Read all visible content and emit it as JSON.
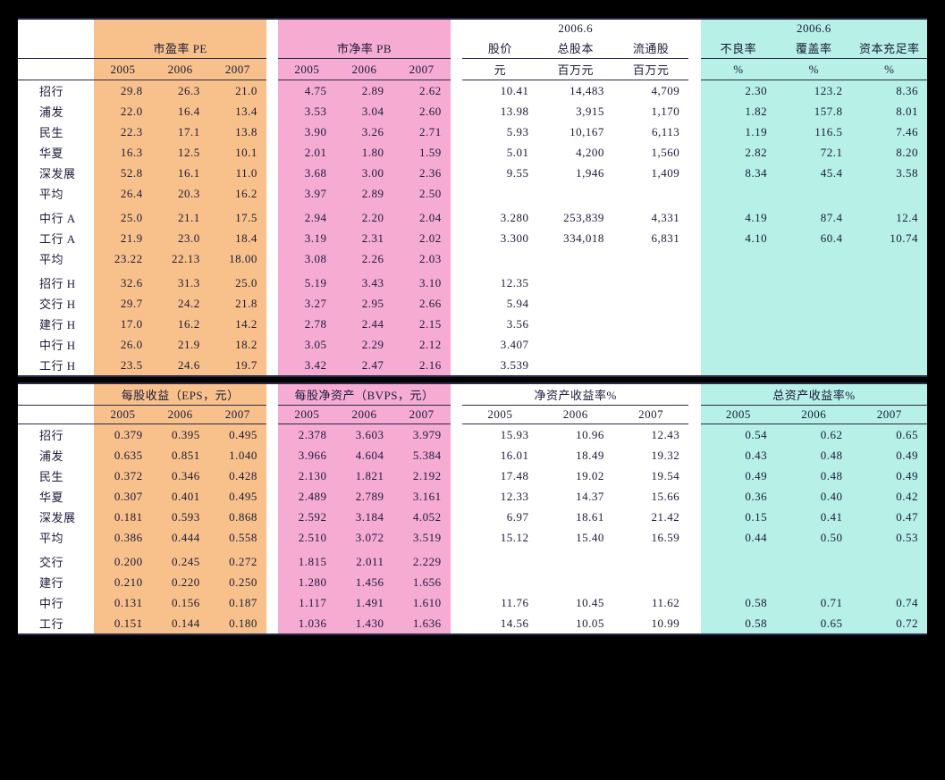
{
  "colors": {
    "pe_bg": "#f8c18b",
    "pb_bg": "#f6abd3",
    "ratio_bg": "#b6f0e6",
    "page_bg": "#000000",
    "panel_bg": "#ffffff",
    "rule": "#2a2a4a",
    "text": "#1a1a3a"
  },
  "typography": {
    "font_family": "SimSun / Songti",
    "font_size_pt": 10
  },
  "table1": {
    "sections": {
      "pe": {
        "title": "市盈率 PE",
        "years": [
          "2005",
          "2006",
          "2007"
        ]
      },
      "pb": {
        "title": "市净率 PB",
        "years": [
          "2005",
          "2006",
          "2007"
        ]
      },
      "mkt": {
        "super": "2006.6",
        "cols": [
          "股价",
          "总股本",
          "流通股"
        ],
        "units": [
          "元",
          "百万元",
          "百万元"
        ]
      },
      "ratio": {
        "super": "2006.6",
        "cols": [
          "不良率",
          "覆盖率",
          "资本充足率"
        ],
        "units": [
          "%",
          "%",
          "%"
        ]
      }
    },
    "rows": [
      {
        "label": "招行",
        "pe": [
          "29.8",
          "26.3",
          "21.0"
        ],
        "pb": [
          "4.75",
          "2.89",
          "2.62"
        ],
        "mkt": [
          "10.41",
          "14,483",
          "4,709"
        ],
        "ratio": [
          "2.30",
          "123.2",
          "8.36"
        ]
      },
      {
        "label": "浦发",
        "pe": [
          "22.0",
          "16.4",
          "13.4"
        ],
        "pb": [
          "3.53",
          "3.04",
          "2.60"
        ],
        "mkt": [
          "13.98",
          "3,915",
          "1,170"
        ],
        "ratio": [
          "1.82",
          "157.8",
          "8.01"
        ]
      },
      {
        "label": "民生",
        "pe": [
          "22.3",
          "17.1",
          "13.8"
        ],
        "pb": [
          "3.90",
          "3.26",
          "2.71"
        ],
        "mkt": [
          "5.93",
          "10,167",
          "6,113"
        ],
        "ratio": [
          "1.19",
          "116.5",
          "7.46"
        ]
      },
      {
        "label": "华夏",
        "pe": [
          "16.3",
          "12.5",
          "10.1"
        ],
        "pb": [
          "2.01",
          "1.80",
          "1.59"
        ],
        "mkt": [
          "5.01",
          "4,200",
          "1,560"
        ],
        "ratio": [
          "2.82",
          "72.1",
          "8.20"
        ]
      },
      {
        "label": "深发展",
        "pe": [
          "52.8",
          "16.1",
          "11.0"
        ],
        "pb": [
          "3.68",
          "3.00",
          "2.36"
        ],
        "mkt": [
          "9.55",
          "1,946",
          "1,409"
        ],
        "ratio": [
          "8.34",
          "45.4",
          "3.58"
        ]
      },
      {
        "label": "平均",
        "pe": [
          "26.4",
          "20.3",
          "16.2"
        ],
        "pb": [
          "3.97",
          "2.89",
          "2.50"
        ],
        "mkt": [
          "",
          "",
          ""
        ],
        "ratio": [
          "",
          "",
          ""
        ]
      },
      {
        "label": "",
        "pe": [
          "",
          "",
          ""
        ],
        "pb": [
          "",
          "",
          ""
        ],
        "mkt": [
          "",
          "",
          ""
        ],
        "ratio": [
          "",
          "",
          ""
        ],
        "blank": true
      },
      {
        "label": "中行 A",
        "pe": [
          "25.0",
          "21.1",
          "17.5"
        ],
        "pb": [
          "2.94",
          "2.20",
          "2.04"
        ],
        "mkt": [
          "3.280",
          "253,839",
          "4,331"
        ],
        "ratio": [
          "4.19",
          "87.4",
          "12.4"
        ]
      },
      {
        "label": "工行 A",
        "pe": [
          "21.9",
          "23.0",
          "18.4"
        ],
        "pb": [
          "3.19",
          "2.31",
          "2.02"
        ],
        "mkt": [
          "3.300",
          "334,018",
          "6,831"
        ],
        "ratio": [
          "4.10",
          "60.4",
          "10.74"
        ]
      },
      {
        "label": "平均",
        "pe": [
          "23.22",
          "22.13",
          "18.00"
        ],
        "pb": [
          "3.08",
          "2.26",
          "2.03"
        ],
        "mkt": [
          "",
          "",
          ""
        ],
        "ratio": [
          "",
          "",
          ""
        ]
      },
      {
        "label": "",
        "pe": [
          "",
          "",
          ""
        ],
        "pb": [
          "",
          "",
          ""
        ],
        "mkt": [
          "",
          "",
          ""
        ],
        "ratio": [
          "",
          "",
          ""
        ],
        "blank": true
      },
      {
        "label": "招行 H",
        "pe": [
          "32.6",
          "31.3",
          "25.0"
        ],
        "pb": [
          "5.19",
          "3.43",
          "3.10"
        ],
        "mkt": [
          "12.35",
          "",
          ""
        ],
        "ratio": [
          "",
          "",
          ""
        ]
      },
      {
        "label": "交行 H",
        "pe": [
          "29.7",
          "24.2",
          "21.8"
        ],
        "pb": [
          "3.27",
          "2.95",
          "2.66"
        ],
        "mkt": [
          "5.94",
          "",
          ""
        ],
        "ratio": [
          "",
          "",
          ""
        ]
      },
      {
        "label": "建行 H",
        "pe": [
          "17.0",
          "16.2",
          "14.2"
        ],
        "pb": [
          "2.78",
          "2.44",
          "2.15"
        ],
        "mkt": [
          "3.56",
          "",
          ""
        ],
        "ratio": [
          "",
          "",
          ""
        ]
      },
      {
        "label": "中行 H",
        "pe": [
          "26.0",
          "21.9",
          "18.2"
        ],
        "pb": [
          "3.05",
          "2.29",
          "2.12"
        ],
        "mkt": [
          "3.407",
          "",
          ""
        ],
        "ratio": [
          "",
          "",
          ""
        ]
      },
      {
        "label": "工行 H",
        "pe": [
          "23.5",
          "24.6",
          "19.7"
        ],
        "pb": [
          "3.42",
          "2.47",
          "2.16"
        ],
        "mkt": [
          "3.539",
          "",
          ""
        ],
        "ratio": [
          "",
          "",
          ""
        ]
      }
    ]
  },
  "table2": {
    "sections": {
      "eps": {
        "title": "每股收益（EPS，元）",
        "years": [
          "2005",
          "2006",
          "2007"
        ]
      },
      "bvps": {
        "title": "每股净资产（BVPS，元）",
        "years": [
          "2005",
          "2006",
          "2007"
        ]
      },
      "roe": {
        "title": "净资产收益率%",
        "years": [
          "2005",
          "2006",
          "2007"
        ]
      },
      "roa": {
        "title": "总资产收益率%",
        "years": [
          "2005",
          "2006",
          "2007"
        ]
      }
    },
    "rows": [
      {
        "label": "招行",
        "eps": [
          "0.379",
          "0.395",
          "0.495"
        ],
        "bvps": [
          "2.378",
          "3.603",
          "3.979"
        ],
        "roe": [
          "15.93",
          "10.96",
          "12.43"
        ],
        "roa": [
          "0.54",
          "0.62",
          "0.65"
        ]
      },
      {
        "label": "浦发",
        "eps": [
          "0.635",
          "0.851",
          "1.040"
        ],
        "bvps": [
          "3.966",
          "4.604",
          "5.384"
        ],
        "roe": [
          "16.01",
          "18.49",
          "19.32"
        ],
        "roa": [
          "0.43",
          "0.48",
          "0.49"
        ]
      },
      {
        "label": "民生",
        "eps": [
          "0.372",
          "0.346",
          "0.428"
        ],
        "bvps": [
          "2.130",
          "1.821",
          "2.192"
        ],
        "roe": [
          "17.48",
          "19.02",
          "19.54"
        ],
        "roa": [
          "0.49",
          "0.48",
          "0.49"
        ]
      },
      {
        "label": "华夏",
        "eps": [
          "0.307",
          "0.401",
          "0.495"
        ],
        "bvps": [
          "2.489",
          "2.789",
          "3.161"
        ],
        "roe": [
          "12.33",
          "14.37",
          "15.66"
        ],
        "roa": [
          "0.36",
          "0.40",
          "0.42"
        ]
      },
      {
        "label": "深发展",
        "eps": [
          "0.181",
          "0.593",
          "0.868"
        ],
        "bvps": [
          "2.592",
          "3.184",
          "4.052"
        ],
        "roe": [
          "6.97",
          "18.61",
          "21.42"
        ],
        "roa": [
          "0.15",
          "0.41",
          "0.47"
        ]
      },
      {
        "label": "平均",
        "eps": [
          "0.386",
          "0.444",
          "0.558"
        ],
        "bvps": [
          "2.510",
          "3.072",
          "3.519"
        ],
        "roe": [
          "15.12",
          "15.40",
          "16.59"
        ],
        "roa": [
          "0.44",
          "0.50",
          "0.53"
        ]
      },
      {
        "label": "",
        "eps": [
          "",
          "",
          ""
        ],
        "bvps": [
          "",
          "",
          ""
        ],
        "roe": [
          "",
          "",
          ""
        ],
        "roa": [
          "",
          "",
          ""
        ],
        "blank": true
      },
      {
        "label": "交行",
        "eps": [
          "0.200",
          "0.245",
          "0.272"
        ],
        "bvps": [
          "1.815",
          "2.011",
          "2.229"
        ],
        "roe": [
          "",
          "",
          ""
        ],
        "roa": [
          "",
          "",
          ""
        ]
      },
      {
        "label": "建行",
        "eps": [
          "0.210",
          "0.220",
          "0.250"
        ],
        "bvps": [
          "1.280",
          "1.456",
          "1.656"
        ],
        "roe": [
          "",
          "",
          ""
        ],
        "roa": [
          "",
          "",
          ""
        ]
      },
      {
        "label": "中行",
        "eps": [
          "0.131",
          "0.156",
          "0.187"
        ],
        "bvps": [
          "1.117",
          "1.491",
          "1.610"
        ],
        "roe": [
          "11.76",
          "10.45",
          "11.62"
        ],
        "roa": [
          "0.58",
          "0.71",
          "0.74"
        ]
      },
      {
        "label": "工行",
        "eps": [
          "0.151",
          "0.144",
          "0.180"
        ],
        "bvps": [
          "1.036",
          "1.430",
          "1.636"
        ],
        "roe": [
          "14.56",
          "10.05",
          "10.99"
        ],
        "roa": [
          "0.58",
          "0.65",
          "0.72"
        ]
      }
    ]
  }
}
